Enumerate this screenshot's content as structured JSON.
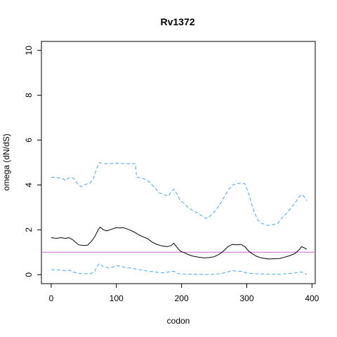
{
  "chart_data": {
    "type": "line",
    "title": "Rv1372",
    "xlabel": "codon",
    "ylabel": "omega (dN/dS)",
    "xlim": [
      -15,
      405
    ],
    "ylim": [
      -0.4,
      10.4
    ],
    "xticks": [
      0,
      100,
      200,
      300,
      400
    ],
    "yticks": [
      0,
      2,
      4,
      6,
      8,
      10
    ],
    "reference_line": {
      "y": 1,
      "color": "#CC66CC"
    },
    "colors": {
      "mean": "#000000",
      "bounds": "#4AA8E8",
      "reference": "#CC66CC"
    },
    "series": [
      {
        "role": "upper",
        "style": "dashed",
        "color": "#4AA8E8",
        "points": [
          [
            0,
            4.35
          ],
          [
            10,
            4.32
          ],
          [
            18,
            4.28
          ],
          [
            22,
            4.2
          ],
          [
            26,
            4.3
          ],
          [
            30,
            4.35
          ],
          [
            34,
            4.3
          ],
          [
            38,
            4.15
          ],
          [
            42,
            4.0
          ],
          [
            46,
            3.92
          ],
          [
            50,
            4.0
          ],
          [
            55,
            4.05
          ],
          [
            60,
            4.1
          ],
          [
            65,
            4.3
          ],
          [
            70,
            4.75
          ],
          [
            74,
            5.0
          ],
          [
            80,
            4.95
          ],
          [
            90,
            4.95
          ],
          [
            100,
            4.97
          ],
          [
            110,
            4.95
          ],
          [
            120,
            4.95
          ],
          [
            129,
            4.95
          ],
          [
            131,
            4.35
          ],
          [
            140,
            4.3
          ],
          [
            148,
            4.2
          ],
          [
            155,
            4.0
          ],
          [
            160,
            3.85
          ],
          [
            165,
            3.65
          ],
          [
            170,
            3.6
          ],
          [
            175,
            3.55
          ],
          [
            180,
            3.5
          ],
          [
            185,
            3.75
          ],
          [
            189,
            3.8
          ],
          [
            193,
            3.6
          ],
          [
            198,
            3.3
          ],
          [
            203,
            3.2
          ],
          [
            210,
            3.0
          ],
          [
            218,
            2.85
          ],
          [
            225,
            2.75
          ],
          [
            232,
            2.6
          ],
          [
            238,
            2.5
          ],
          [
            243,
            2.6
          ],
          [
            250,
            2.8
          ],
          [
            257,
            3.05
          ],
          [
            264,
            3.4
          ],
          [
            271,
            3.75
          ],
          [
            278,
            4.0
          ],
          [
            285,
            4.05
          ],
          [
            292,
            4.1
          ],
          [
            297,
            4.05
          ],
          [
            302,
            3.7
          ],
          [
            307,
            3.2
          ],
          [
            312,
            2.75
          ],
          [
            317,
            2.45
          ],
          [
            322,
            2.3
          ],
          [
            327,
            2.25
          ],
          [
            332,
            2.2
          ],
          [
            338,
            2.22
          ],
          [
            343,
            2.25
          ],
          [
            348,
            2.3
          ],
          [
            353,
            2.5
          ],
          [
            360,
            2.7
          ],
          [
            367,
            2.95
          ],
          [
            374,
            3.2
          ],
          [
            380,
            3.45
          ],
          [
            384,
            3.58
          ],
          [
            388,
            3.48
          ],
          [
            392,
            3.3
          ]
        ]
      },
      {
        "role": "mean",
        "style": "solid",
        "color": "#000000",
        "points": [
          [
            0,
            1.65
          ],
          [
            8,
            1.62
          ],
          [
            15,
            1.65
          ],
          [
            22,
            1.62
          ],
          [
            27,
            1.65
          ],
          [
            32,
            1.58
          ],
          [
            37,
            1.45
          ],
          [
            42,
            1.33
          ],
          [
            50,
            1.3
          ],
          [
            56,
            1.32
          ],
          [
            62,
            1.5
          ],
          [
            67,
            1.7
          ],
          [
            72,
            2.0
          ],
          [
            75,
            2.12
          ],
          [
            80,
            2.0
          ],
          [
            85,
            1.95
          ],
          [
            90,
            2.0
          ],
          [
            95,
            2.05
          ],
          [
            100,
            2.1
          ],
          [
            105,
            2.08
          ],
          [
            110,
            2.1
          ],
          [
            115,
            2.05
          ],
          [
            120,
            2.0
          ],
          [
            127,
            1.9
          ],
          [
            133,
            1.8
          ],
          [
            140,
            1.7
          ],
          [
            148,
            1.6
          ],
          [
            155,
            1.45
          ],
          [
            162,
            1.35
          ],
          [
            170,
            1.28
          ],
          [
            178,
            1.25
          ],
          [
            184,
            1.3
          ],
          [
            188,
            1.4
          ],
          [
            193,
            1.22
          ],
          [
            198,
            1.05
          ],
          [
            204,
            0.98
          ],
          [
            210,
            0.9
          ],
          [
            218,
            0.82
          ],
          [
            226,
            0.78
          ],
          [
            234,
            0.75
          ],
          [
            242,
            0.76
          ],
          [
            250,
            0.8
          ],
          [
            257,
            0.9
          ],
          [
            264,
            1.05
          ],
          [
            271,
            1.25
          ],
          [
            278,
            1.35
          ],
          [
            285,
            1.33
          ],
          [
            291,
            1.35
          ],
          [
            297,
            1.25
          ],
          [
            303,
            1.05
          ],
          [
            309,
            0.92
          ],
          [
            315,
            0.82
          ],
          [
            322,
            0.75
          ],
          [
            328,
            0.72
          ],
          [
            335,
            0.7
          ],
          [
            342,
            0.71
          ],
          [
            350,
            0.72
          ],
          [
            358,
            0.78
          ],
          [
            366,
            0.85
          ],
          [
            374,
            0.95
          ],
          [
            380,
            1.1
          ],
          [
            384,
            1.25
          ],
          [
            388,
            1.2
          ],
          [
            392,
            1.13
          ]
        ]
      },
      {
        "role": "lower",
        "style": "dashed",
        "color": "#4AA8E8",
        "points": [
          [
            0,
            0.22
          ],
          [
            10,
            0.22
          ],
          [
            20,
            0.18
          ],
          [
            28,
            0.2
          ],
          [
            34,
            0.12
          ],
          [
            40,
            0.06
          ],
          [
            50,
            0.04
          ],
          [
            60,
            0.05
          ],
          [
            66,
            0.1
          ],
          [
            70,
            0.35
          ],
          [
            74,
            0.5
          ],
          [
            80,
            0.35
          ],
          [
            90,
            0.3
          ],
          [
            100,
            0.4
          ],
          [
            110,
            0.35
          ],
          [
            120,
            0.3
          ],
          [
            130,
            0.25
          ],
          [
            140,
            0.2
          ],
          [
            150,
            0.15
          ],
          [
            160,
            0.12
          ],
          [
            170,
            0.08
          ],
          [
            180,
            0.12
          ],
          [
            188,
            0.15
          ],
          [
            195,
            0.05
          ],
          [
            205,
            0.03
          ],
          [
            220,
            0.02
          ],
          [
            240,
            0.01
          ],
          [
            260,
            0.04
          ],
          [
            270,
            0.12
          ],
          [
            278,
            0.18
          ],
          [
            285,
            0.15
          ],
          [
            292,
            0.15
          ],
          [
            300,
            0.08
          ],
          [
            310,
            0.04
          ],
          [
            330,
            0.03
          ],
          [
            350,
            0.02
          ],
          [
            365,
            0.05
          ],
          [
            375,
            0.08
          ],
          [
            384,
            0.12
          ],
          [
            388,
            0.05
          ],
          [
            392,
            0.02
          ]
        ]
      }
    ]
  }
}
